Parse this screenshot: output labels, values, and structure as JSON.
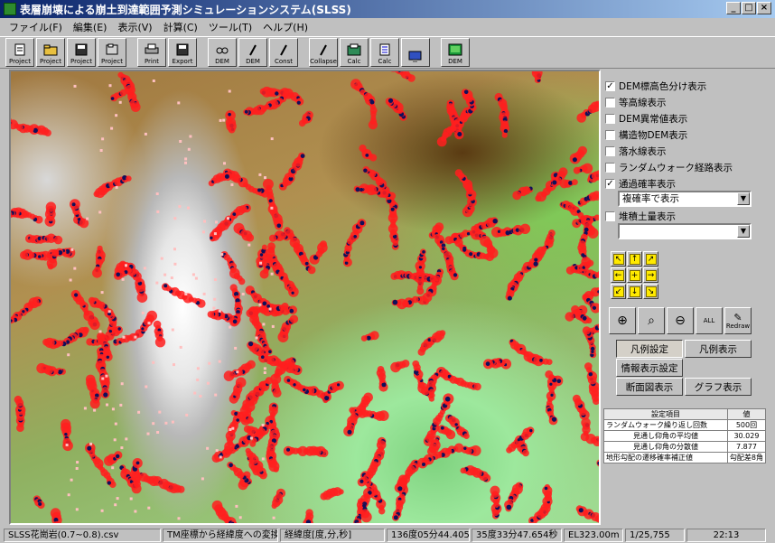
{
  "window": {
    "title": "表層崩壊による崩土到達範囲予測シミュレーションシステム(SLSS)",
    "buttons": [
      "_",
      "□",
      "×"
    ]
  },
  "menu": [
    "ファイル(F)",
    "編集(E)",
    "表示(V)",
    "計算(C)",
    "ツール(T)",
    "ヘルプ(H)"
  ],
  "toolbar": [
    {
      "label": "Project",
      "icon": "open-project-icon"
    },
    {
      "label": "Project",
      "icon": "project-folder-icon"
    },
    {
      "label": "Project",
      "icon": "save-project-icon"
    },
    {
      "label": "Project",
      "icon": "close-project-icon"
    },
    {
      "label": "Print",
      "icon": "printer-icon"
    },
    {
      "label": "Export",
      "icon": "export-icon"
    },
    {
      "label": "DEM",
      "icon": "glasses-icon"
    },
    {
      "label": "DEM",
      "icon": "pen-icon"
    },
    {
      "label": "Const",
      "icon": "pen-icon"
    },
    {
      "label": "Collapse",
      "icon": "pen-icon"
    },
    {
      "label": "Calc",
      "icon": "calc-icon"
    },
    {
      "label": "Calc",
      "icon": "calc-doc-icon"
    },
    {
      "label": "",
      "icon": "monitor-icon"
    },
    {
      "label": "DEM",
      "icon": "dem-icon"
    }
  ],
  "panel": {
    "checks": [
      {
        "label": "DEM標高色分け表示",
        "checked": "✓"
      },
      {
        "label": "等高線表示",
        "checked": ""
      },
      {
        "label": "DEM異常値表示",
        "checked": ""
      },
      {
        "label": "構造物DEM表示",
        "checked": ""
      },
      {
        "label": "落水線表示",
        "checked": ""
      },
      {
        "label": "ランダムウォーク経路表示",
        "checked": ""
      },
      {
        "label": "通過確率表示",
        "checked": "✓"
      }
    ],
    "prob_select": "複確率で表示",
    "deposit_check": {
      "label": "堆積土量表示",
      "checked": ""
    },
    "deposit_select": "",
    "buttons": {
      "legend_setting": "凡例設定",
      "legend_show": "凡例表示",
      "info_setting": "情報表示設定",
      "section_show": "断面図表示",
      "graph_show": "グラフ表示"
    },
    "zoom_labels": {
      "all": "ALL",
      "redraw": "Redraw"
    },
    "table": {
      "headers": [
        "設定項目",
        "値"
      ],
      "rows": [
        [
          "ランダムウォーク繰り返し回数",
          "500回"
        ],
        [
          "見通し仰角の平均値",
          "30.029"
        ],
        [
          "見通し仰角の分散値",
          "7.877"
        ],
        [
          "地形勾配の遷移確率補正値",
          "勾配差8角"
        ]
      ]
    }
  },
  "status": [
    "SLSS花崗岩(0.7~0.8).csv",
    "TM座標から経緯度への変換終",
    "経緯度[度,分,秒]",
    "136度05分44.405秒",
    "35度33分47.654秒",
    "EL323.00m",
    "1/25,755",
    "22:13"
  ],
  "colors": {
    "hazard_red": "#ff1e1e",
    "track_navy": "#10105a",
    "titlebar": "#0a246a"
  }
}
